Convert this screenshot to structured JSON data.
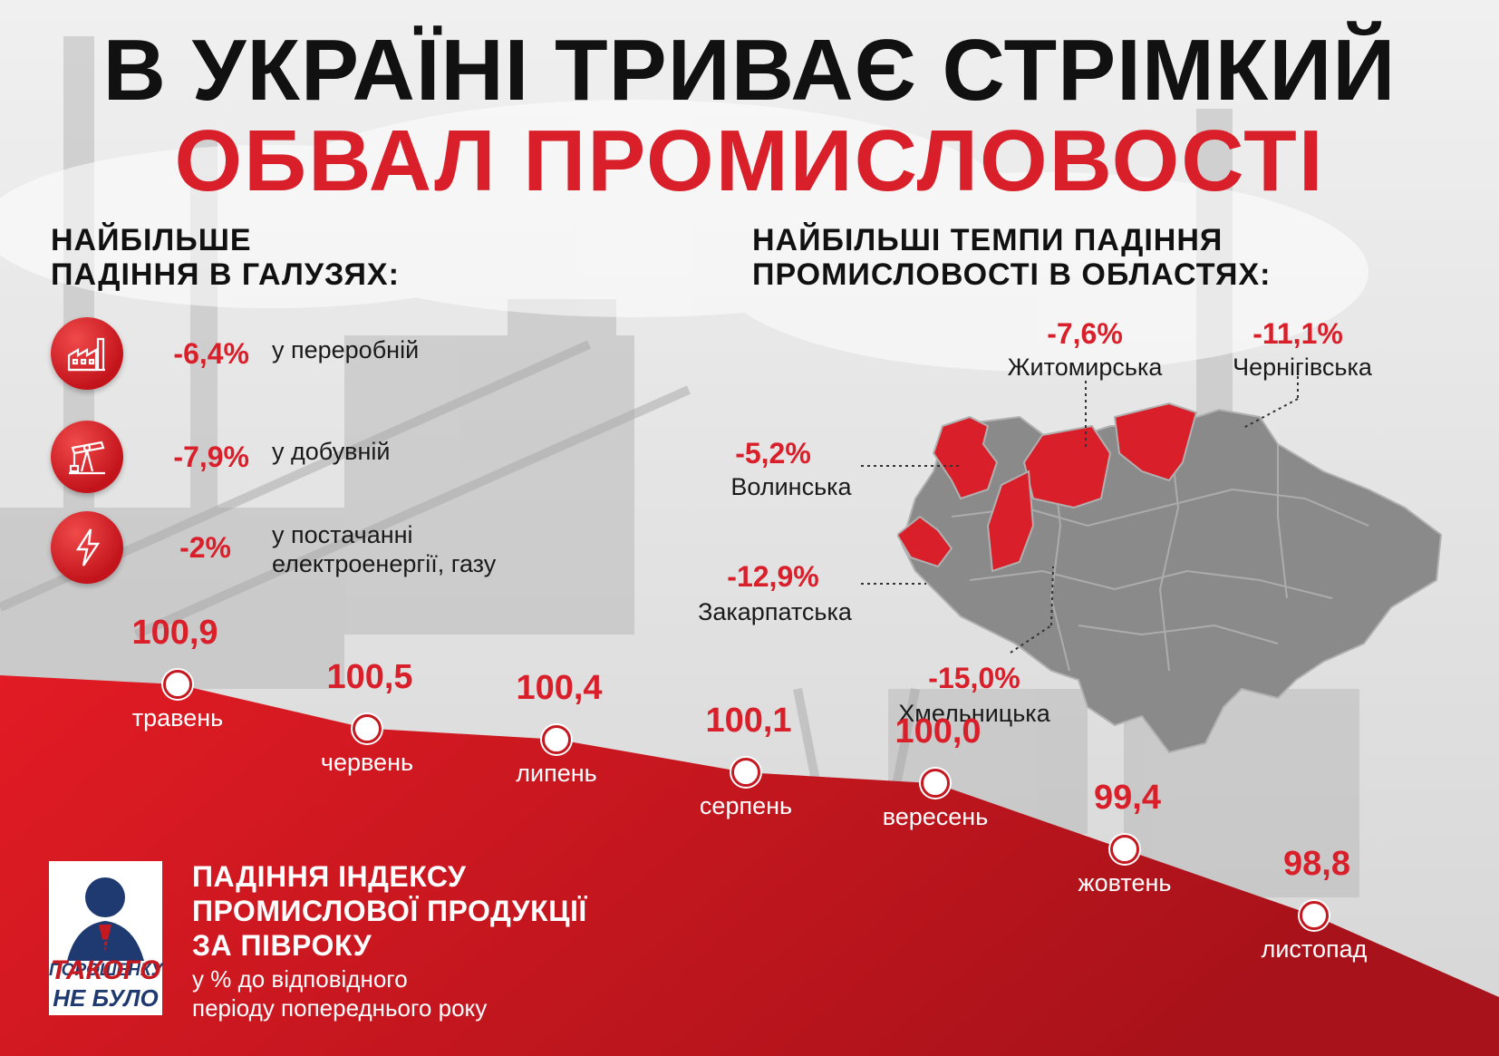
{
  "title": {
    "line1": "В УКРАЇНІ ТРИВАЄ СТРІМКИЙ",
    "line2": "ОБВАЛ ПРОМИСЛОВОСТІ"
  },
  "industries": {
    "heading_line1": "НАЙБІЛЬШЕ",
    "heading_line2": "ПАДІННЯ В ГАЛУЗЯХ:",
    "items": [
      {
        "icon": "factory-icon",
        "value": "-6,4%",
        "label_line1": "у переробній",
        "label_line2": ""
      },
      {
        "icon": "oil-pump-icon",
        "value": "-7,9%",
        "label_line1": "у добувній",
        "label_line2": ""
      },
      {
        "icon": "lightning-icon",
        "value": "-2%",
        "label_line1": "у постачанні",
        "label_line2": "електроенергії, газу"
      }
    ]
  },
  "regions": {
    "heading_line1": "НАЙБІЛЬШІ ТЕМПИ ПАДІННЯ",
    "heading_line2": "ПРОМИСЛОВОСТІ В ОБЛАСТЯХ:",
    "items": [
      {
        "name": "Житомирська",
        "value": "-7,6%"
      },
      {
        "name": "Чернігівська",
        "value": "-11,1%"
      },
      {
        "name": "Волинська",
        "value": "-5,2%"
      },
      {
        "name": "Закарпатська",
        "value": "-12,9%"
      },
      {
        "name": "Хмельницька",
        "value": "-15,0%"
      }
    ],
    "highlight_color": "#d81f2a",
    "map_color": "#8a8a8a"
  },
  "bottom": {
    "title_line1": "ПАДІННЯ ІНДЕКСУ",
    "title_line2": "ПРОМИСЛОВОЇ ПРОДУКЦІЇ",
    "title_line3": "ЗА ПІВРОКУ",
    "subtitle_line1": "у % до відповідного",
    "subtitle_line2": "періоду попереднього року",
    "poster_line1": "ПРИ ПОРОШЕНКУ",
    "poster_line2": "ТАКОГО",
    "poster_line3": "НЕ БУЛО"
  },
  "chart_data": {
    "type": "line",
    "categories": [
      "травень",
      "червень",
      "липень",
      "серпень",
      "вересень",
      "жовтень",
      "листопад"
    ],
    "values": [
      100.9,
      100.5,
      100.4,
      100.1,
      100.0,
      99.4,
      98.8
    ],
    "value_labels": [
      "100,9",
      "100,5",
      "100,4",
      "100,1",
      "100,0",
      "99,4",
      "98,8"
    ],
    "title": "ПАДІННЯ ІНДЕКСУ ПРОМИСЛОВОЇ ПРОДУКЦІЇ ЗА ПІВРОКУ",
    "subtitle": "у % до відповідного періоду попереднього року",
    "xlabel": "",
    "ylabel": "",
    "grid": false,
    "legend": "none",
    "fill_color": "#d81f2a"
  }
}
